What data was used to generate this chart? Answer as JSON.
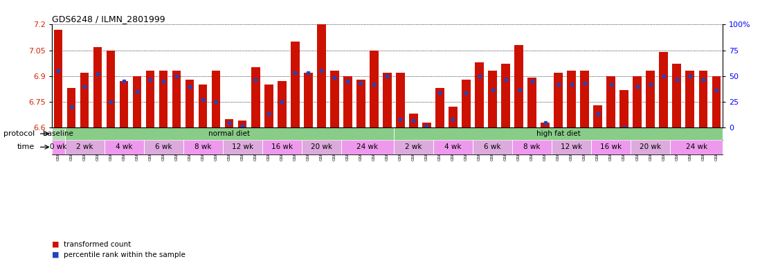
{
  "title": "GDS6248 / ILMN_2801999",
  "samples": [
    "GSM994787",
    "GSM994788",
    "GSM994789",
    "GSM994790",
    "GSM994791",
    "GSM994792",
    "GSM994793",
    "GSM994794",
    "GSM994795",
    "GSM994796",
    "GSM994797",
    "GSM994798",
    "GSM994799",
    "GSM994800",
    "GSM994801",
    "GSM994802",
    "GSM994803",
    "GSM994804",
    "GSM994805",
    "GSM994806",
    "GSM994807",
    "GSM994808",
    "GSM994809",
    "GSM994810",
    "GSM994811",
    "GSM994812",
    "GSM994813",
    "GSM994814",
    "GSM994815",
    "GSM994816",
    "GSM994817",
    "GSM994818",
    "GSM994819",
    "GSM994820",
    "GSM994821",
    "GSM994822",
    "GSM994823",
    "GSM994824",
    "GSM994825",
    "GSM994826",
    "GSM994827",
    "GSM994828",
    "GSM994829",
    "GSM994830",
    "GSM994831",
    "GSM994832",
    "GSM994833",
    "GSM994834",
    "GSM994835",
    "GSM994836",
    "GSM994837"
  ],
  "bar_heights": [
    7.17,
    6.83,
    6.92,
    7.07,
    7.05,
    6.87,
    6.9,
    6.93,
    6.93,
    6.93,
    6.88,
    6.85,
    6.93,
    6.65,
    6.64,
    6.95,
    6.85,
    6.87,
    7.1,
    6.92,
    7.2,
    6.93,
    6.9,
    6.88,
    7.05,
    6.92,
    6.92,
    6.68,
    6.63,
    6.83,
    6.72,
    6.88,
    6.98,
    6.93,
    6.97,
    7.08,
    6.89,
    6.63,
    6.92,
    6.93,
    6.93,
    6.73,
    6.9,
    6.82,
    6.9,
    6.93,
    7.04,
    6.97,
    6.93,
    6.93,
    6.9
  ],
  "blue_markers": [
    6.93,
    6.72,
    6.84,
    6.91,
    6.75,
    6.87,
    6.81,
    6.88,
    6.87,
    6.9,
    6.84,
    6.76,
    6.75,
    6.63,
    6.61,
    6.88,
    6.68,
    6.75,
    6.92,
    6.92,
    6.93,
    6.89,
    6.87,
    6.86,
    6.85,
    6.9,
    6.65,
    6.64,
    6.61,
    6.8,
    6.65,
    6.8,
    6.9,
    6.82,
    6.88,
    6.82,
    6.87,
    6.63,
    6.85,
    6.85,
    6.86,
    6.68,
    6.85,
    6.6,
    6.84,
    6.85,
    6.9,
    6.88,
    6.9,
    6.88,
    6.82
  ],
  "ylim_left": [
    6.6,
    7.2
  ],
  "ylim_right": [
    0,
    100
  ],
  "yticks_left": [
    6.6,
    6.75,
    6.9,
    7.05,
    7.2
  ],
  "yticks_right": [
    0,
    25,
    50,
    75,
    100
  ],
  "bar_color": "#cc1100",
  "marker_color": "#2244bb",
  "protocol_groups": [
    {
      "label": "baseline",
      "start": 0,
      "end": 1,
      "color": "#aaddaa"
    },
    {
      "label": "normal diet",
      "start": 1,
      "end": 26,
      "color": "#88cc88"
    },
    {
      "label": "high fat diet",
      "start": 26,
      "end": 51,
      "color": "#88cc88"
    }
  ],
  "time_groups": [
    {
      "label": "0 wk",
      "start": 0,
      "end": 1,
      "color": "#ee99ee"
    },
    {
      "label": "2 wk",
      "start": 1,
      "end": 4,
      "color": "#ddaadd"
    },
    {
      "label": "4 wk",
      "start": 4,
      "end": 7,
      "color": "#ee99ee"
    },
    {
      "label": "6 wk",
      "start": 7,
      "end": 10,
      "color": "#ddaadd"
    },
    {
      "label": "8 wk",
      "start": 10,
      "end": 13,
      "color": "#ee99ee"
    },
    {
      "label": "12 wk",
      "start": 13,
      "end": 16,
      "color": "#ddaadd"
    },
    {
      "label": "16 wk",
      "start": 16,
      "end": 19,
      "color": "#ee99ee"
    },
    {
      "label": "20 wk",
      "start": 19,
      "end": 22,
      "color": "#ddaadd"
    },
    {
      "label": "24 wk",
      "start": 22,
      "end": 26,
      "color": "#ee99ee"
    },
    {
      "label": "2 wk",
      "start": 26,
      "end": 29,
      "color": "#ddaadd"
    },
    {
      "label": "4 wk",
      "start": 29,
      "end": 32,
      "color": "#ee99ee"
    },
    {
      "label": "6 wk",
      "start": 32,
      "end": 35,
      "color": "#ddaadd"
    },
    {
      "label": "8 wk",
      "start": 35,
      "end": 38,
      "color": "#ee99ee"
    },
    {
      "label": "12 wk",
      "start": 38,
      "end": 41,
      "color": "#ddaadd"
    },
    {
      "label": "16 wk",
      "start": 41,
      "end": 44,
      "color": "#ee99ee"
    },
    {
      "label": "20 wk",
      "start": 44,
      "end": 47,
      "color": "#ddaadd"
    },
    {
      "label": "24 wk",
      "start": 47,
      "end": 51,
      "color": "#ee99ee"
    }
  ],
  "legend_items": [
    {
      "label": "transformed count",
      "color": "#cc1100"
    },
    {
      "label": "percentile rank within the sample",
      "color": "#2244bb"
    }
  ]
}
